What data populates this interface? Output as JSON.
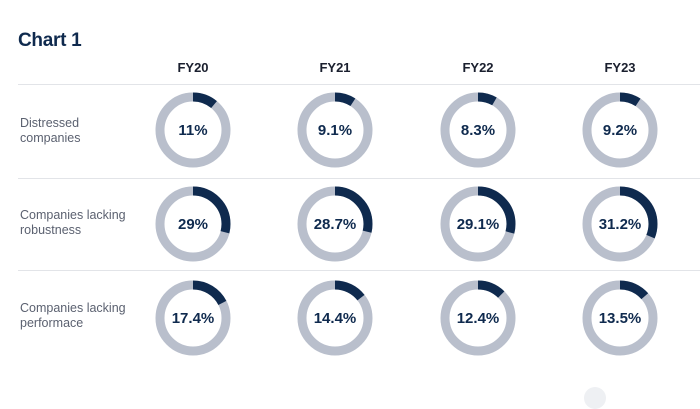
{
  "title": "Chart 1",
  "colors": {
    "accent": "#0f2a4e",
    "track": "#b9bfcc"
  },
  "chart_data": {
    "type": "donut-grid",
    "title": "Chart 1",
    "columns": [
      "FY20",
      "FY21",
      "FY22",
      "FY23"
    ],
    "rows": [
      {
        "label": "Distressed companies",
        "label_lines": [
          "Distressed",
          "companies"
        ],
        "values": [
          11,
          9.1,
          8.3,
          9.2
        ],
        "display": [
          "11%",
          "9.1%",
          "8.3%",
          "9.2%"
        ]
      },
      {
        "label": "Companies lacking robustness",
        "label_lines": [
          "Companies lacking",
          "robustness"
        ],
        "values": [
          29,
          28.7,
          29.1,
          31.2
        ],
        "display": [
          "29%",
          "28.7%",
          "29.1%",
          "31.2%"
        ]
      },
      {
        "label": "Companies lacking performace",
        "label_lines": [
          "Companies lacking",
          "performace"
        ],
        "values": [
          17.4,
          14.4,
          12.4,
          13.5
        ],
        "display": [
          "17.4%",
          "14.4%",
          "12.4%",
          "13.5%"
        ]
      }
    ]
  }
}
